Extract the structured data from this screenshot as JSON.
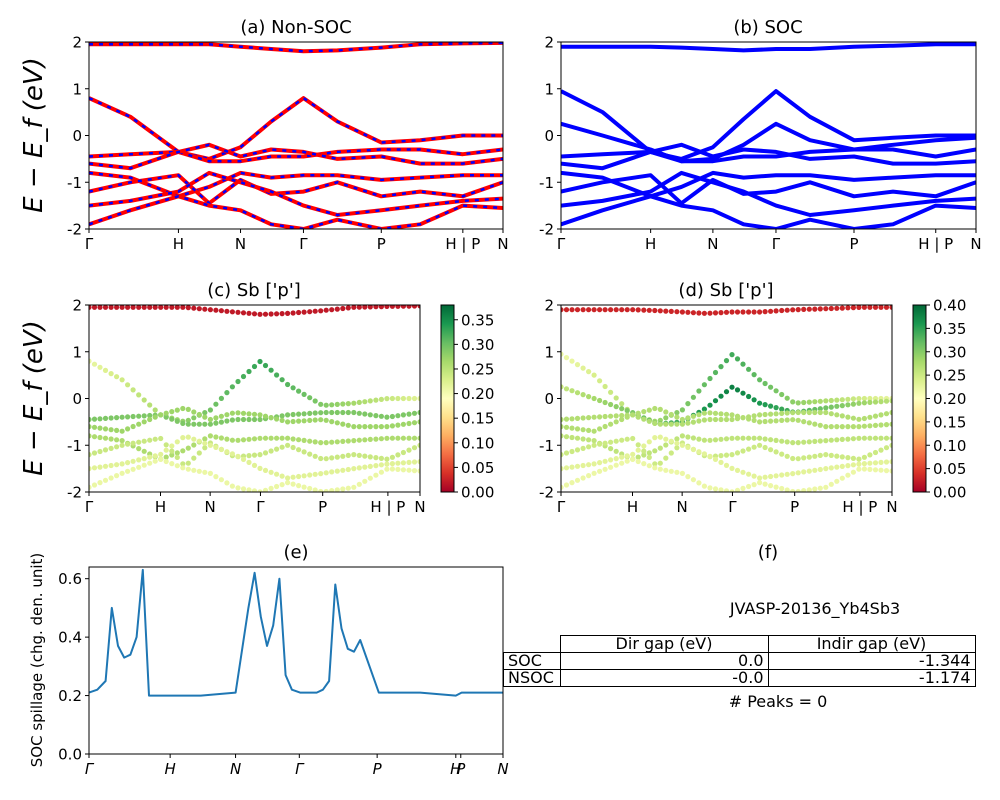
{
  "panels": {
    "a": {
      "title": "(a) Non-SOC",
      "ylabel": "E − E_f (eV)"
    },
    "b": {
      "title": "(b) SOC"
    },
    "c": {
      "title": "(c)  Sb ['p']",
      "ylabel": "E − E_f (eV)"
    },
    "d": {
      "title": "(d) Sb ['p']"
    },
    "e": {
      "title": "(e)",
      "ylabel": "SOC spillage (chg. den. unit)"
    },
    "f": {
      "title": "(f)",
      "material": "JVASP-20136_Yb4Sb3",
      "peaks": "# Peaks = 0"
    }
  },
  "table_f": {
    "headers": [
      "Dir gap (eV)",
      "Indir gap (eV)"
    ],
    "rows": [
      {
        "label": "SOC",
        "dir": "0.0",
        "indir": "-1.344"
      },
      {
        "label": "NSOC",
        "dir": "-0.0",
        "indir": "-1.174"
      }
    ]
  },
  "chart_data": [
    {
      "type": "line",
      "panel": "a",
      "title": "(a) Non-SOC",
      "ylabel": "E − E_f (eV)",
      "ylim": [
        -2,
        2
      ],
      "yticks": [
        -2,
        -1,
        0,
        1,
        2
      ],
      "xticks": [
        "Γ",
        "H",
        "N",
        "Γ",
        "P",
        "H | P",
        "N"
      ],
      "xtick_positions": [
        0,
        0.216,
        0.366,
        0.518,
        0.706,
        0.903,
        1.0
      ],
      "colors": [
        "#0000ff",
        "#ff0000"
      ],
      "x": [
        0,
        0.1,
        0.216,
        0.29,
        0.366,
        0.44,
        0.518,
        0.6,
        0.706,
        0.8,
        0.903,
        1.0
      ],
      "series": [
        {
          "values": [
            1.95,
            1.95,
            1.95,
            1.95,
            1.9,
            1.85,
            1.8,
            1.82,
            1.88,
            1.95,
            1.97,
            1.98
          ]
        },
        {
          "values": [
            0.8,
            0.4,
            -0.35,
            -0.5,
            -0.25,
            0.3,
            0.8,
            0.3,
            -0.15,
            -0.1,
            0.0,
            0.0
          ]
        },
        {
          "values": [
            -0.45,
            -0.4,
            -0.35,
            -0.55,
            -0.55,
            -0.45,
            -0.45,
            -0.35,
            -0.3,
            -0.3,
            -0.4,
            -0.3
          ]
        },
        {
          "values": [
            -0.6,
            -0.7,
            -0.35,
            -0.2,
            -0.45,
            -0.3,
            -0.35,
            -0.5,
            -0.45,
            -0.6,
            -0.6,
            -0.5
          ]
        },
        {
          "values": [
            -0.8,
            -0.9,
            -1.3,
            -1.1,
            -0.8,
            -0.9,
            -0.85,
            -0.85,
            -0.95,
            -0.9,
            -0.85,
            -0.85
          ]
        },
        {
          "values": [
            -1.2,
            -1.0,
            -0.85,
            -1.45,
            -0.95,
            -1.25,
            -1.2,
            -1.0,
            -1.3,
            -1.2,
            -1.3,
            -1.0
          ]
        },
        {
          "values": [
            -1.5,
            -1.4,
            -1.2,
            -0.8,
            -1.0,
            -1.2,
            -1.5,
            -1.7,
            -1.6,
            -1.5,
            -1.4,
            -1.35
          ]
        },
        {
          "values": [
            -1.9,
            -1.6,
            -1.3,
            -1.5,
            -1.6,
            -1.9,
            -2.0,
            -1.8,
            -2.0,
            -1.9,
            -1.5,
            -1.55
          ]
        }
      ]
    },
    {
      "type": "line",
      "panel": "b",
      "title": "(b) SOC",
      "ylim": [
        -2,
        2
      ],
      "yticks": [
        -2,
        -1,
        0,
        1,
        2
      ],
      "xticks": [
        "Γ",
        "H",
        "N",
        "Γ",
        "P",
        "H | P",
        "N"
      ],
      "xtick_positions": [
        0,
        0.216,
        0.366,
        0.518,
        0.706,
        0.903,
        1.0
      ],
      "colors": [
        "#0000ff"
      ],
      "x": [
        0,
        0.1,
        0.216,
        0.29,
        0.366,
        0.44,
        0.518,
        0.6,
        0.706,
        0.8,
        0.903,
        1.0
      ],
      "series": [
        {
          "values": [
            1.9,
            1.9,
            1.9,
            1.88,
            1.85,
            1.82,
            1.85,
            1.85,
            1.9,
            1.92,
            1.95,
            1.95
          ]
        },
        {
          "values": [
            0.95,
            0.5,
            -0.35,
            -0.5,
            -0.25,
            0.35,
            0.95,
            0.4,
            -0.1,
            -0.05,
            0.0,
            0.0
          ]
        },
        {
          "values": [
            0.25,
            0.0,
            -0.3,
            -0.55,
            -0.5,
            -0.2,
            0.25,
            -0.1,
            -0.3,
            -0.2,
            -0.1,
            -0.05
          ]
        },
        {
          "values": [
            -0.45,
            -0.4,
            -0.35,
            -0.55,
            -0.55,
            -0.45,
            -0.45,
            -0.35,
            -0.3,
            -0.3,
            -0.45,
            -0.3
          ]
        },
        {
          "values": [
            -0.6,
            -0.7,
            -0.35,
            -0.2,
            -0.45,
            -0.3,
            -0.35,
            -0.5,
            -0.45,
            -0.6,
            -0.6,
            -0.55
          ]
        },
        {
          "values": [
            -0.8,
            -0.9,
            -1.3,
            -1.1,
            -0.8,
            -0.9,
            -0.85,
            -0.85,
            -0.95,
            -0.9,
            -0.85,
            -0.85
          ]
        },
        {
          "values": [
            -1.2,
            -1.0,
            -0.85,
            -1.45,
            -0.95,
            -1.25,
            -1.2,
            -1.0,
            -1.3,
            -1.2,
            -1.3,
            -1.0
          ]
        },
        {
          "values": [
            -1.5,
            -1.4,
            -1.2,
            -0.8,
            -1.0,
            -1.2,
            -1.5,
            -1.7,
            -1.6,
            -1.5,
            -1.4,
            -1.35
          ]
        },
        {
          "values": [
            -1.9,
            -1.6,
            -1.3,
            -1.5,
            -1.6,
            -1.9,
            -2.0,
            -1.8,
            -2.0,
            -1.9,
            -1.5,
            -1.55
          ]
        }
      ]
    },
    {
      "type": "scatter",
      "panel": "c",
      "title": "(c)  Sb ['p']",
      "ylabel": "E − E_f (eV)",
      "ylim": [
        -2,
        2
      ],
      "yticks": [
        -2,
        -1,
        0,
        1,
        2
      ],
      "xticks": [
        "Γ",
        "H",
        "N",
        "Γ",
        "P",
        "H | P",
        "N"
      ],
      "xtick_positions": [
        0,
        0.216,
        0.366,
        0.518,
        0.706,
        0.903,
        1.0
      ],
      "colormap": "RdYlGn",
      "colorbar_range": [
        0.0,
        0.38
      ],
      "colorbar_ticks": [
        "0.00",
        "0.05",
        "0.10",
        "0.15",
        "0.20",
        "0.25",
        "0.30",
        "0.35"
      ],
      "x": [
        0,
        0.1,
        0.216,
        0.29,
        0.366,
        0.44,
        0.518,
        0.6,
        0.706,
        0.8,
        0.903,
        1.0
      ],
      "bands": [
        {
          "values": [
            1.95,
            1.95,
            1.95,
            1.95,
            1.9,
            1.85,
            1.8,
            1.82,
            1.88,
            1.95,
            1.97,
            1.98
          ],
          "weight": 0.02
        },
        {
          "values": [
            0.8,
            0.4,
            -0.35,
            -0.5,
            -0.25,
            0.3,
            0.8,
            0.3,
            -0.15,
            -0.1,
            0.0,
            0.0
          ],
          "weight": 0.33
        },
        {
          "values": [
            -0.45,
            -0.4,
            -0.35,
            -0.55,
            -0.55,
            -0.45,
            -0.45,
            -0.35,
            -0.3,
            -0.3,
            -0.4,
            -0.3
          ],
          "weight": 0.29
        },
        {
          "values": [
            -0.6,
            -0.7,
            -0.35,
            -0.2,
            -0.45,
            -0.3,
            -0.35,
            -0.5,
            -0.45,
            -0.6,
            -0.6,
            -0.5
          ],
          "weight": 0.27
        },
        {
          "values": [
            -0.8,
            -0.9,
            -1.3,
            -1.1,
            -0.8,
            -0.9,
            -0.85,
            -0.85,
            -0.95,
            -0.9,
            -0.85,
            -0.85
          ],
          "weight": 0.26
        },
        {
          "values": [
            -1.2,
            -1.0,
            -0.85,
            -1.45,
            -0.95,
            -1.25,
            -1.2,
            -1.0,
            -1.3,
            -1.2,
            -1.3,
            -1.0
          ],
          "weight": 0.24
        },
        {
          "values": [
            -1.5,
            -1.4,
            -1.2,
            -0.8,
            -1.0,
            -1.2,
            -1.5,
            -1.7,
            -1.6,
            -1.5,
            -1.4,
            -1.35
          ],
          "weight": 0.22
        },
        {
          "values": [
            -1.9,
            -1.6,
            -1.3,
            -1.5,
            -1.6,
            -1.9,
            -2.0,
            -1.8,
            -2.0,
            -1.9,
            -1.5,
            -1.55
          ],
          "weight": 0.21
        }
      ]
    },
    {
      "type": "scatter",
      "panel": "d",
      "title": "(d) Sb ['p']",
      "ylim": [
        -2,
        2
      ],
      "yticks": [
        -2,
        -1,
        0,
        1,
        2
      ],
      "xticks": [
        "Γ",
        "H",
        "N",
        "Γ",
        "P",
        "H | P",
        "N"
      ],
      "xtick_positions": [
        0,
        0.216,
        0.366,
        0.518,
        0.706,
        0.903,
        1.0
      ],
      "colormap": "RdYlGn",
      "colorbar_range": [
        0.0,
        0.4
      ],
      "colorbar_ticks": [
        "0.00",
        "0.05",
        "0.10",
        "0.15",
        "0.20",
        "0.25",
        "0.30",
        "0.35",
        "0.40"
      ],
      "x": [
        0,
        0.1,
        0.216,
        0.29,
        0.366,
        0.44,
        0.518,
        0.6,
        0.706,
        0.8,
        0.903,
        1.0
      ],
      "bands": [
        {
          "values": [
            1.9,
            1.9,
            1.9,
            1.88,
            1.85,
            1.82,
            1.85,
            1.85,
            1.9,
            1.92,
            1.95,
            1.95
          ],
          "weight": 0.03
        },
        {
          "values": [
            0.95,
            0.5,
            -0.35,
            -0.5,
            -0.25,
            0.35,
            0.95,
            0.4,
            -0.1,
            -0.05,
            0.0,
            0.0
          ],
          "weight": 0.34
        },
        {
          "values": [
            0.25,
            0.0,
            -0.3,
            -0.55,
            -0.5,
            -0.2,
            0.25,
            -0.1,
            -0.3,
            -0.2,
            -0.1,
            -0.05
          ],
          "weight": 0.38
        },
        {
          "values": [
            -0.45,
            -0.4,
            -0.35,
            -0.55,
            -0.55,
            -0.45,
            -0.45,
            -0.35,
            -0.3,
            -0.3,
            -0.45,
            -0.3
          ],
          "weight": 0.27
        },
        {
          "values": [
            -0.6,
            -0.7,
            -0.35,
            -0.2,
            -0.45,
            -0.3,
            -0.35,
            -0.5,
            -0.45,
            -0.6,
            -0.6,
            -0.55
          ],
          "weight": 0.27
        },
        {
          "values": [
            -0.8,
            -0.9,
            -1.3,
            -1.1,
            -0.8,
            -0.9,
            -0.85,
            -0.85,
            -0.95,
            -0.9,
            -0.85,
            -0.85
          ],
          "weight": 0.26
        },
        {
          "values": [
            -1.2,
            -1.0,
            -0.85,
            -1.45,
            -0.95,
            -1.25,
            -1.2,
            -1.0,
            -1.3,
            -1.2,
            -1.3,
            -1.0
          ],
          "weight": 0.25
        },
        {
          "values": [
            -1.5,
            -1.4,
            -1.2,
            -0.8,
            -1.0,
            -1.2,
            -1.5,
            -1.7,
            -1.6,
            -1.5,
            -1.4,
            -1.35
          ],
          "weight": 0.23
        },
        {
          "values": [
            -1.9,
            -1.6,
            -1.3,
            -1.5,
            -1.6,
            -1.9,
            -2.0,
            -1.8,
            -2.0,
            -1.9,
            -1.5,
            -1.55
          ],
          "weight": 0.22
        }
      ]
    },
    {
      "type": "line",
      "panel": "e",
      "title": "(e)",
      "ylabel": "SOC spillage (chg. den. unit)",
      "ylim": [
        0.0,
        0.64
      ],
      "yticks": [
        "0.0",
        "0.2",
        "0.4",
        "0.6"
      ],
      "xticks": [
        "Γ",
        "H",
        "N",
        "Γ",
        "P",
        "H",
        "P",
        "N"
      ],
      "xtick_positions": [
        0,
        0.196,
        0.354,
        0.508,
        0.696,
        0.886,
        0.898,
        1.0
      ],
      "color": "#1f77b4",
      "x": [
        0,
        0.02,
        0.04,
        0.055,
        0.07,
        0.085,
        0.1,
        0.115,
        0.13,
        0.145,
        0.2,
        0.27,
        0.354,
        0.385,
        0.4,
        0.415,
        0.43,
        0.445,
        0.46,
        0.475,
        0.49,
        0.51,
        0.53,
        0.55,
        0.565,
        0.58,
        0.595,
        0.61,
        0.625,
        0.64,
        0.655,
        0.7,
        0.8,
        0.886,
        0.9,
        1.0
      ],
      "y": [
        0.21,
        0.22,
        0.25,
        0.5,
        0.37,
        0.33,
        0.34,
        0.4,
        0.63,
        0.2,
        0.2,
        0.2,
        0.21,
        0.5,
        0.62,
        0.47,
        0.37,
        0.44,
        0.6,
        0.27,
        0.22,
        0.21,
        0.21,
        0.21,
        0.22,
        0.25,
        0.58,
        0.43,
        0.36,
        0.35,
        0.39,
        0.21,
        0.21,
        0.2,
        0.21,
        0.21
      ]
    }
  ]
}
